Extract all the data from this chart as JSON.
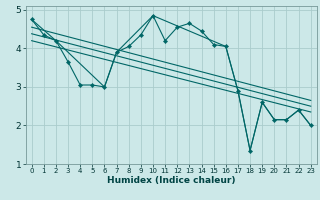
{
  "xlabel": "Humidex (Indice chaleur)",
  "bg_color": "#cce8e8",
  "grid_color": "#aacccc",
  "line_color": "#006666",
  "xlim": [
    -0.5,
    23.5
  ],
  "ylim": [
    1,
    5.1
  ],
  "yticks": [
    1,
    2,
    3,
    4,
    5
  ],
  "xticks": [
    0,
    1,
    2,
    3,
    4,
    5,
    6,
    7,
    8,
    9,
    10,
    11,
    12,
    13,
    14,
    15,
    16,
    17,
    18,
    19,
    20,
    21,
    22,
    23
  ],
  "series1_x": [
    0,
    1,
    2,
    3,
    4,
    5,
    6,
    7,
    8,
    9,
    10,
    11,
    12,
    13,
    14,
    15,
    16,
    17,
    18,
    19,
    20,
    21,
    22,
    23
  ],
  "series1_y": [
    4.75,
    4.35,
    4.2,
    3.65,
    3.05,
    3.05,
    3.0,
    3.9,
    4.05,
    4.35,
    4.85,
    4.2,
    4.55,
    4.65,
    4.45,
    4.1,
    4.05,
    2.9,
    1.35,
    2.6,
    2.15,
    2.15,
    2.4,
    2.0
  ],
  "series2_x": [
    0,
    2,
    6,
    7,
    10,
    16,
    17,
    18,
    19,
    20,
    21,
    22,
    23
  ],
  "series2_y": [
    4.75,
    4.2,
    3.0,
    3.9,
    4.85,
    4.05,
    2.9,
    1.35,
    2.6,
    2.15,
    2.15,
    2.4,
    2.0
  ],
  "regression_lines": [
    {
      "x": [
        0,
        23
      ],
      "y": [
        4.55,
        2.65
      ]
    },
    {
      "x": [
        0,
        23
      ],
      "y": [
        4.38,
        2.5
      ]
    },
    {
      "x": [
        0,
        23
      ],
      "y": [
        4.2,
        2.35
      ]
    }
  ]
}
